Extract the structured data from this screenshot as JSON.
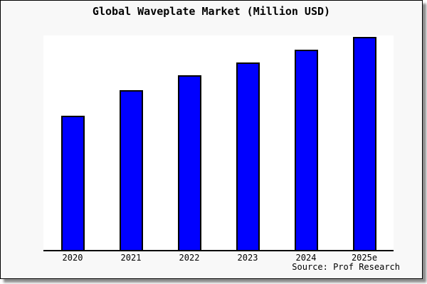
{
  "figure": {
    "title": "Global Waveplate Market (Million USD)",
    "source": "Source: Prof Research"
  },
  "chart_data": {
    "type": "bar",
    "title": "Global Waveplate Market (Million USD)",
    "categories": [
      "2020",
      "2021",
      "2022",
      "2023",
      "2024",
      "2025e"
    ],
    "values": [
      63,
      75,
      82,
      88,
      94,
      100
    ],
    "value_scale": "relative: y-axis has no tick labels in source image; bar heights normalized so 2025e = 100",
    "xlabel": "",
    "ylabel": "",
    "ylim": [
      0,
      100
    ],
    "grid": false,
    "legend": false,
    "bar_color": "#0000ff",
    "bar_border_color": "#000000",
    "plot_bg": "#ffffff",
    "figure_bg": "#f8f8f8",
    "source_note": "Source: Prof Research"
  }
}
